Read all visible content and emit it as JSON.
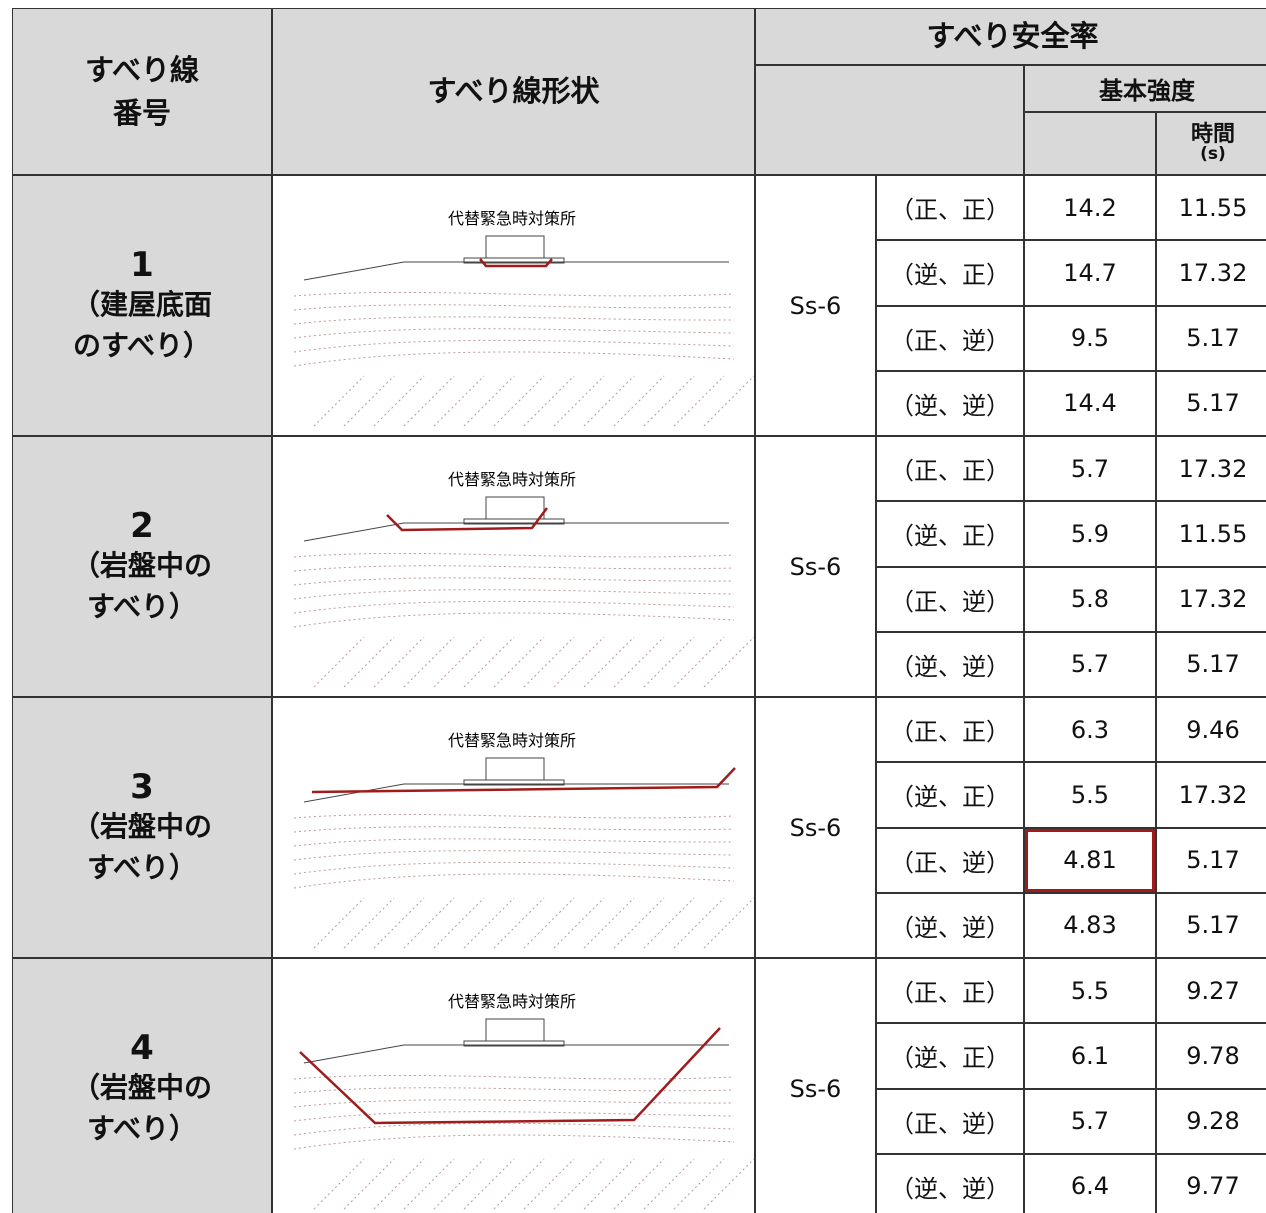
{
  "header": {
    "slip_line_no": [
      "すべり線",
      "番号"
    ],
    "slip_shape": "すべり線形状",
    "safety_factor": "すべり安全率",
    "basic_strength": "基本強度",
    "time": [
      "時間",
      "(s)"
    ]
  },
  "groups": [
    {
      "number": "1",
      "note": [
        "（建屋底面",
        "のすべり）"
      ],
      "building": "代替緊急時対策所",
      "wave": "Ss-6",
      "rows": [
        {
          "direction": "（正、正）",
          "factor": "14.2",
          "time": "11.55"
        },
        {
          "direction": "（逆、正）",
          "factor": "14.7",
          "time": "17.32"
        },
        {
          "direction": "（正、逆）",
          "factor": "9.5",
          "time": "5.17"
        },
        {
          "direction": "（逆、逆）",
          "factor": "14.4",
          "time": "5.17"
        }
      ]
    },
    {
      "number": "2",
      "note": [
        "（岩盤中の",
        "すべり）"
      ],
      "building": "代替緊急時対策所",
      "wave": "Ss-6",
      "rows": [
        {
          "direction": "（正、正）",
          "factor": "5.7",
          "time": "17.32"
        },
        {
          "direction": "（逆、正）",
          "factor": "5.9",
          "time": "11.55"
        },
        {
          "direction": "（正、逆）",
          "factor": "5.8",
          "time": "17.32"
        },
        {
          "direction": "（逆、逆）",
          "factor": "5.7",
          "time": "5.17"
        }
      ]
    },
    {
      "number": "3",
      "note": [
        "（岩盤中の",
        "すべり）"
      ],
      "building": "代替緊急時対策所",
      "wave": "Ss-6",
      "rows": [
        {
          "direction": "（正、正）",
          "factor": "6.3",
          "time": "9.46"
        },
        {
          "direction": "（逆、正）",
          "factor": "5.5",
          "time": "17.32"
        },
        {
          "direction": "（正、逆）",
          "factor": "4.81",
          "time": "5.17"
        },
        {
          "direction": "（逆、逆）",
          "factor": "4.83",
          "time": "5.17"
        }
      ]
    },
    {
      "number": "4",
      "note": [
        "（岩盤中の",
        "すべり）"
      ],
      "building": "代替緊急時対策所",
      "wave": "Ss-6",
      "rows": [
        {
          "direction": "（正、正）",
          "factor": "5.5",
          "time": "9.27"
        },
        {
          "direction": "（逆、正）",
          "factor": "6.1",
          "time": "9.78"
        },
        {
          "direction": "（正、逆）",
          "factor": "5.7",
          "time": "9.28"
        },
        {
          "direction": "（逆、逆）",
          "factor": "6.4",
          "time": "9.77"
        }
      ]
    }
  ]
}
